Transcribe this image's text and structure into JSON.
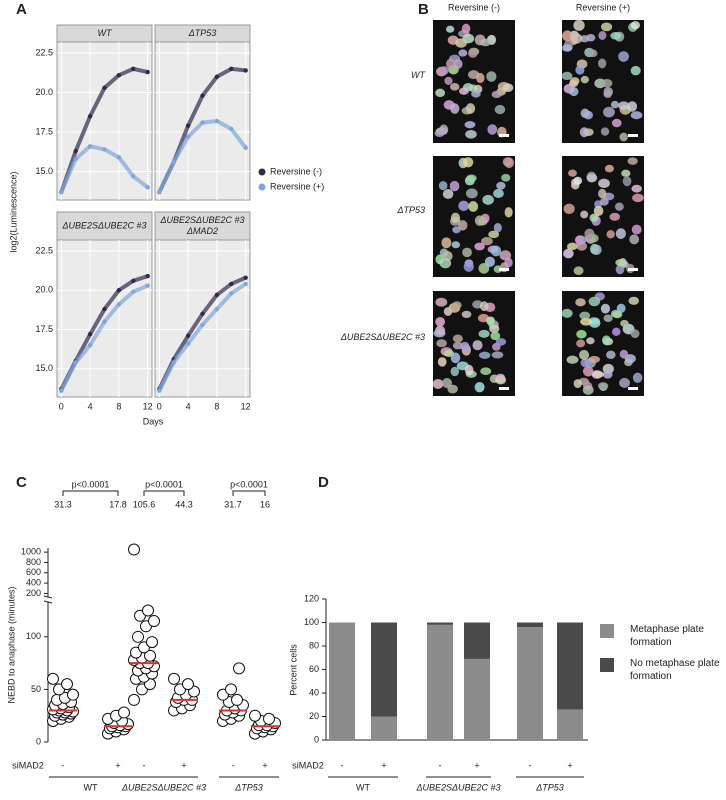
{
  "panel_labels": [
    "A",
    "B",
    "C",
    "D"
  ],
  "images": {
    "columns": [
      "Reversine (-)",
      "Reversine (+)"
    ],
    "rows": [
      "WT",
      "ΔTP53",
      "ΔUBE2SΔUBE2C #3"
    ]
  },
  "chart_data": [
    {
      "type": "line",
      "xlabel": "Days",
      "ylabel": "log2(Luminescence)",
      "x": [
        0,
        2,
        4,
        6,
        8,
        10,
        12
      ],
      "xlim": [
        -0.6,
        12.6
      ],
      "xticks": [
        0,
        4,
        8,
        12
      ],
      "ylim": [
        13.2,
        23.2
      ],
      "yticks": [
        {
          "value": 15,
          "label": "15.0"
        },
        {
          "value": 17.5,
          "label": "17.5"
        },
        {
          "value": 20,
          "label": "20.0"
        },
        {
          "value": 22.5,
          "label": "22.5"
        }
      ],
      "grid": true,
      "legend": [
        "Reversine (-)",
        "Reversine (+)"
      ],
      "colors": [
        "#2f2b4c",
        "#7fa7dd"
      ],
      "facets": [
        {
          "title": [
            "WT"
          ],
          "values": [
            [
              13.7,
              16.3,
              18.5,
              20.3,
              21.1,
              21.5,
              21.3
            ],
            [
              13.7,
              15.8,
              16.6,
              16.4,
              15.9,
              14.7,
              14.0
            ]
          ]
        },
        {
          "title": [
            "ΔTP53"
          ],
          "values": [
            [
              13.7,
              15.6,
              17.9,
              19.8,
              21.0,
              21.5,
              21.4
            ],
            [
              13.7,
              15.6,
              17.2,
              18.1,
              18.2,
              17.7,
              16.5
            ]
          ]
        },
        {
          "title": [
            "ΔUBE2SΔUBE2C #3"
          ],
          "values": [
            [
              13.7,
              15.5,
              17.2,
              18.8,
              20.0,
              20.6,
              20.9
            ],
            [
              13.6,
              15.4,
              16.5,
              18.0,
              19.1,
              19.9,
              20.3
            ]
          ]
        },
        {
          "title": [
            "ΔUBE2SΔUBE2C #3",
            "ΔMAD2"
          ],
          "values": [
            [
              13.7,
              15.6,
              17.1,
              18.5,
              19.7,
              20.4,
              20.8
            ],
            [
              13.6,
              15.4,
              16.6,
              17.8,
              18.8,
              19.8,
              20.4
            ]
          ]
        }
      ]
    },
    {
      "type": "dotplot",
      "ylabel": "NEBD to anaphase (minutes)",
      "xlabel": "siMAD2",
      "categories": [
        "-",
        "+",
        "-",
        "+",
        "-",
        "+"
      ],
      "groups": [
        "WT",
        "ΔUBE2SΔUBE2C #3",
        "ΔTP53"
      ],
      "pvalues": [
        "p<0.0001",
        "p<0.0001",
        "p<0.0001"
      ],
      "summary_labels": [
        31.3,
        17.8,
        105.6,
        44.3,
        31.7,
        16.0
      ],
      "ylim": [
        0,
        135
      ],
      "yticks": [
        0,
        50,
        100
      ],
      "upper_ylim": [
        150,
        1080
      ],
      "upper_yticks": [
        200,
        400,
        600,
        800,
        1000
      ],
      "medians": [
        30,
        15,
        75,
        40,
        30,
        15
      ],
      "median_color": "#e0302a",
      "values": [
        [
          20,
          22,
          24,
          25,
          26,
          27,
          28,
          28,
          29,
          30,
          30,
          31,
          32,
          33,
          35,
          36,
          38,
          40,
          42,
          45,
          50,
          55,
          60
        ],
        [
          8,
          10,
          12,
          13,
          14,
          15,
          15,
          16,
          17,
          18,
          20,
          22,
          25,
          28
        ],
        [
          40,
          50,
          55,
          60,
          62,
          65,
          68,
          70,
          72,
          75,
          75,
          78,
          80,
          82,
          85,
          90,
          95,
          100,
          110,
          115,
          120,
          125,
          1050
        ],
        [
          30,
          32,
          35,
          38,
          40,
          40,
          42,
          45,
          48,
          50,
          55,
          60
        ],
        [
          20,
          22,
          25,
          26,
          28,
          30,
          30,
          32,
          35,
          38,
          40,
          45,
          50,
          70
        ],
        [
          8,
          10,
          12,
          13,
          14,
          15,
          16,
          16,
          18,
          20,
          22,
          25
        ]
      ]
    },
    {
      "type": "stacked_bar",
      "ylabel": "Percent cells",
      "xlabel": "siMAD2",
      "categories": [
        "-",
        "+",
        "-",
        "+",
        "-",
        "+"
      ],
      "groups": [
        "WT",
        "ΔUBE2SΔUBE2C #3",
        "ΔTP53"
      ],
      "ylim": [
        0,
        120
      ],
      "yticks": [
        0,
        20,
        40,
        60,
        80,
        100,
        120
      ],
      "series": [
        {
          "name": "Metaphase plate formation",
          "color": "#8c8c8c",
          "values": [
            100,
            20,
            98,
            69,
            96,
            26
          ]
        },
        {
          "name": "No metaphase plate formation",
          "color": "#4a4a4a",
          "values": [
            0,
            80,
            2,
            31,
            4,
            74
          ]
        }
      ]
    }
  ]
}
